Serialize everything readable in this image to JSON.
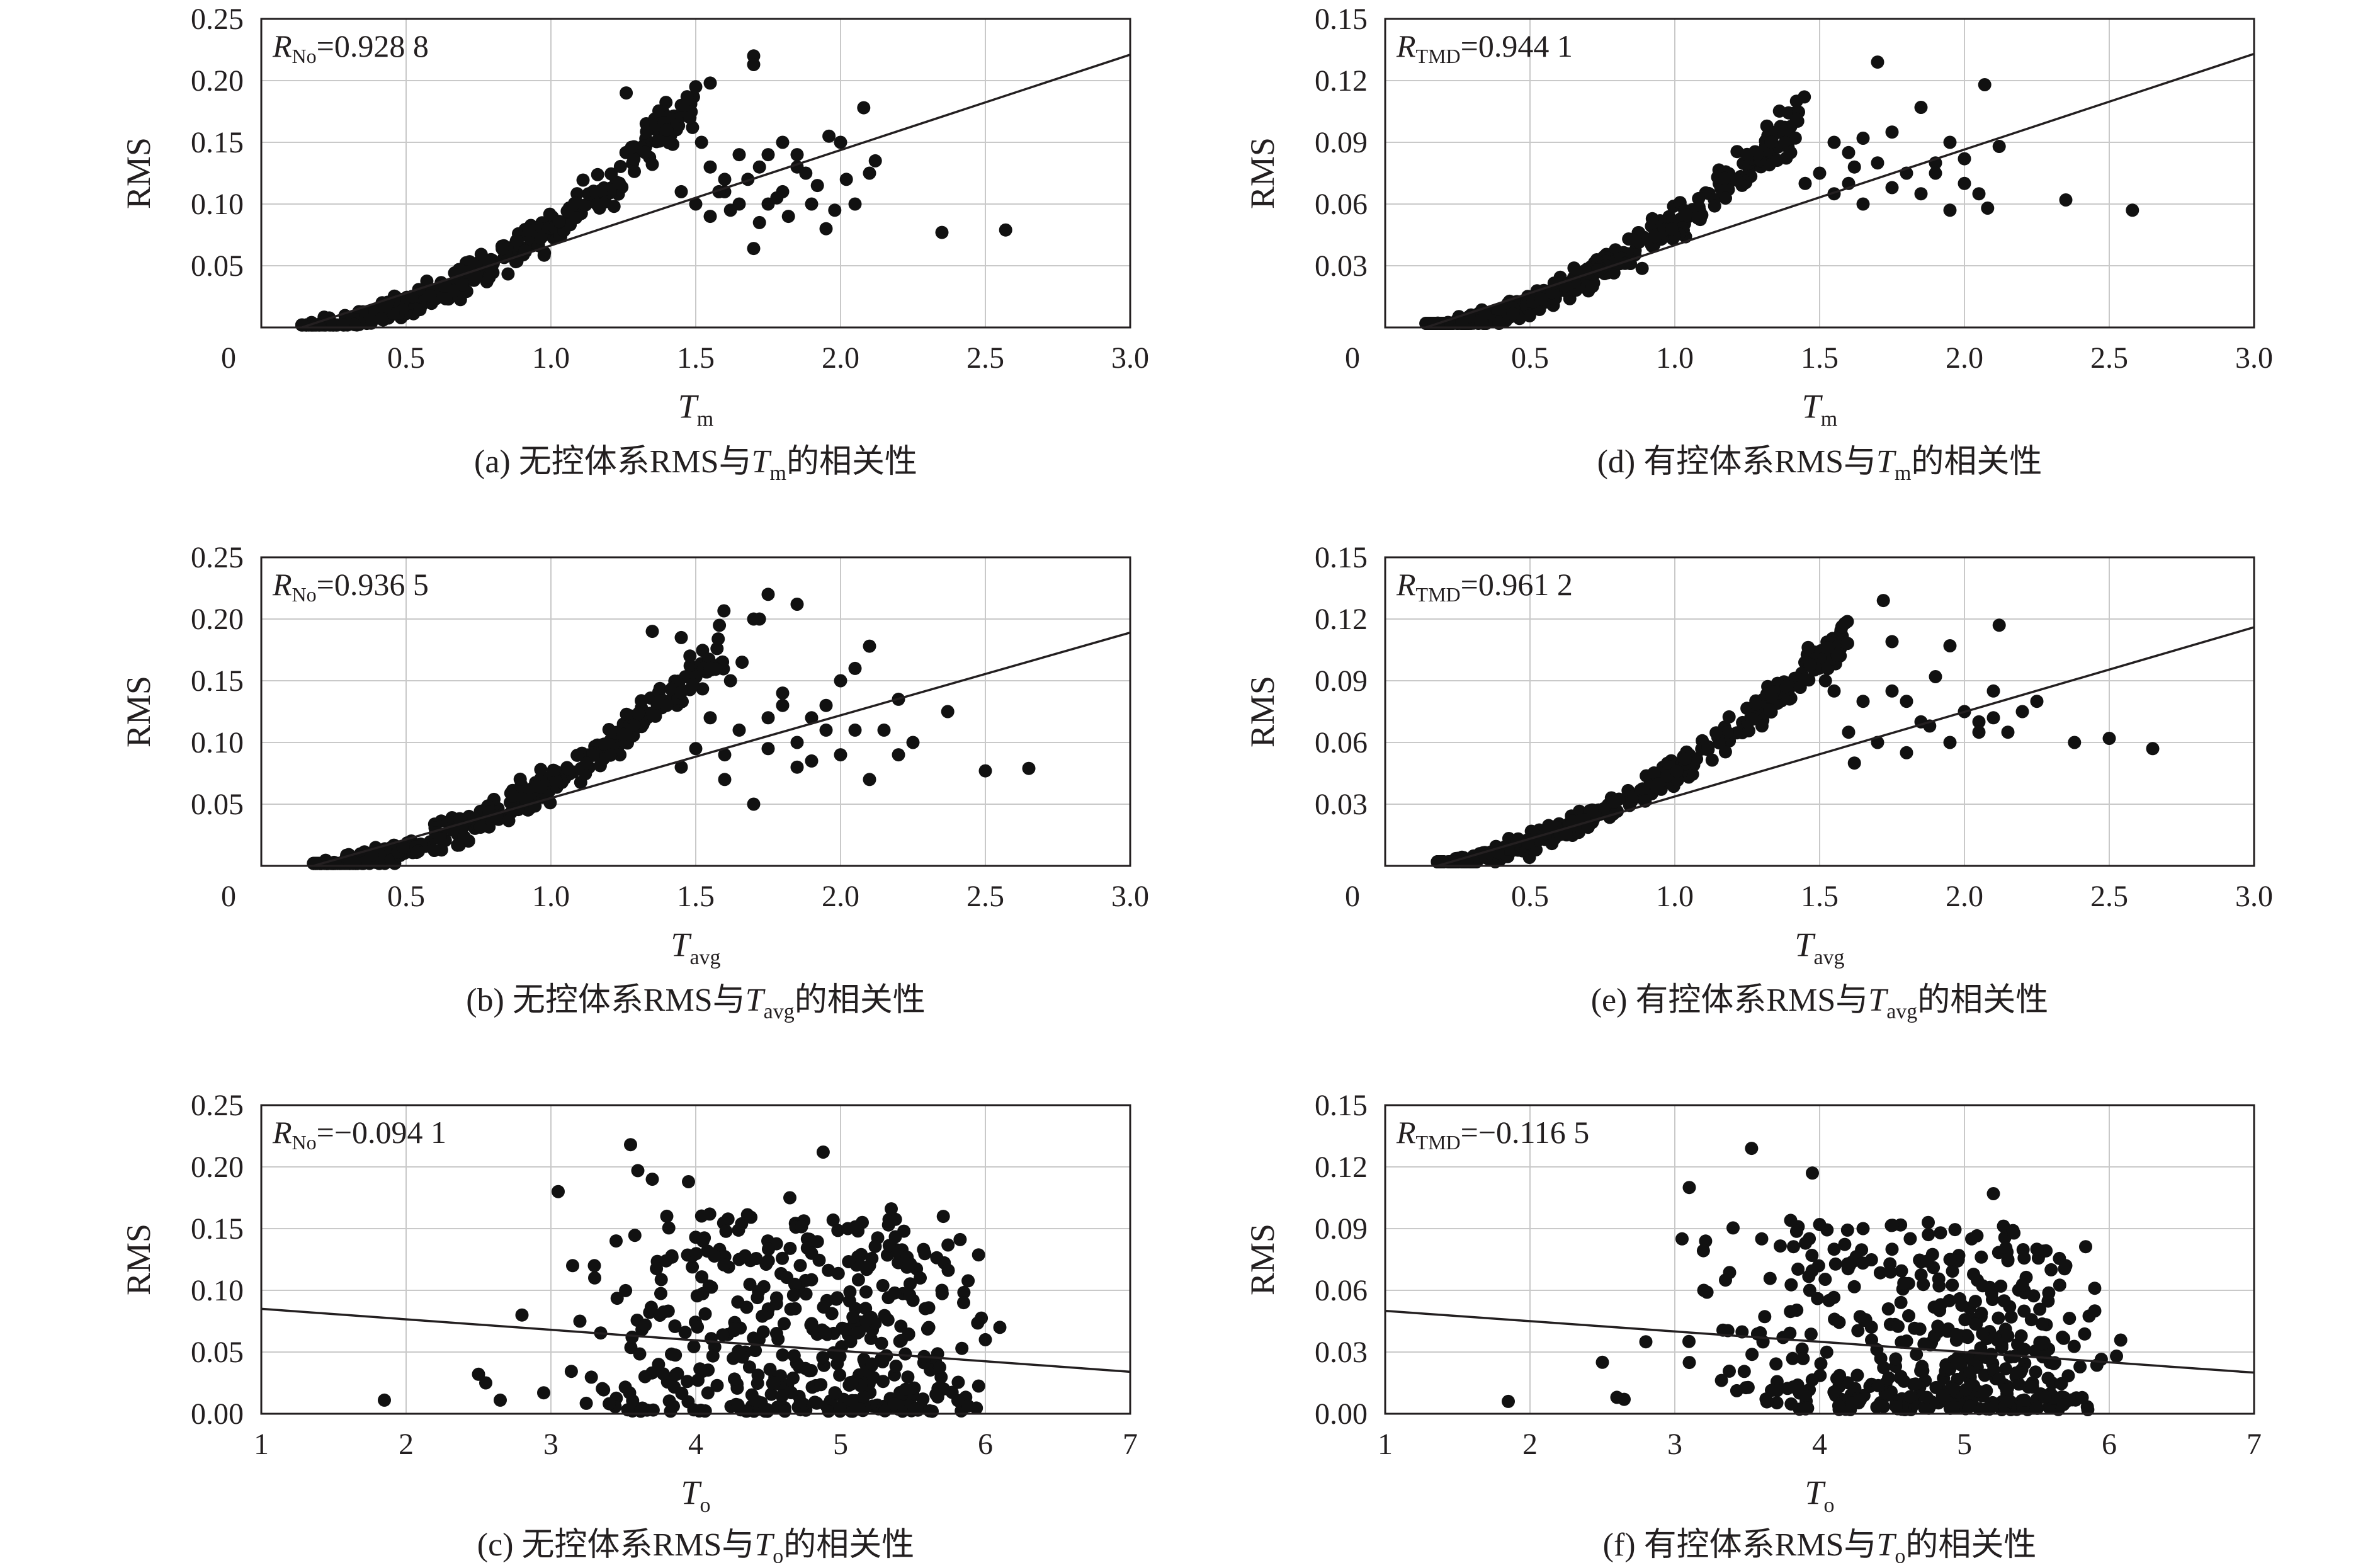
{
  "figure": {
    "colors": {
      "ink": "#231f20",
      "points": "#111111",
      "grid": "#c9c9c9",
      "background": "#ffffff"
    }
  },
  "chart_data": [
    {
      "id": "a",
      "type": "scatter",
      "caption": {
        "prefix": "(a) 无控体系RMS与",
        "var": "T",
        "var_sub": "m",
        "suffix": "的相关性"
      },
      "xlabel": {
        "main": "T",
        "sub": "m"
      },
      "ylabel": "RMS",
      "xlim": [
        0,
        3.0
      ],
      "ylim": [
        0,
        0.25
      ],
      "xticks": [
        0.5,
        1.0,
        1.5,
        2.0,
        2.5,
        3.0
      ],
      "xtick_labels": [
        "0.5",
        "1.0",
        "1.5",
        "2.0",
        "2.5",
        "3.0"
      ],
      "yticks": [
        0.05,
        0.1,
        0.15,
        0.2,
        0.25
      ],
      "ytick_labels": [
        "0.05",
        "0.10",
        "0.15",
        "0.20",
        "0.25"
      ],
      "origin_label": "0",
      "corr": {
        "sym": "R",
        "sub": "No",
        "value": "=0.928 8"
      },
      "fit_line": {
        "x": [
          0.14,
          3.0
        ],
        "y": [
          0.0,
          0.221
        ]
      },
      "cluster": {
        "x_min": 0.14,
        "x_max": 1.5,
        "slope": 0.077,
        "intercept": -0.006,
        "spread": 0.011,
        "count": 380,
        "seed": 11
      },
      "points": [
        [
          1.4,
          0.16
        ],
        [
          1.45,
          0.18
        ],
        [
          1.5,
          0.195
        ],
        [
          1.55,
          0.198
        ],
        [
          1.48,
          0.17
        ],
        [
          1.52,
          0.15
        ],
        [
          1.7,
          0.22
        ],
        [
          1.7,
          0.213
        ],
        [
          1.26,
          0.19
        ],
        [
          1.6,
          0.12
        ],
        [
          1.6,
          0.11
        ],
        [
          1.65,
          0.1
        ],
        [
          1.7,
          0.064
        ],
        [
          1.72,
          0.13
        ],
        [
          1.75,
          0.14
        ],
        [
          1.8,
          0.11
        ],
        [
          1.8,
          0.15
        ],
        [
          1.85,
          0.13
        ],
        [
          1.9,
          0.1
        ],
        [
          1.95,
          0.08
        ],
        [
          1.96,
          0.155
        ],
        [
          2.0,
          0.15
        ],
        [
          2.05,
          0.1
        ],
        [
          2.08,
          0.178
        ],
        [
          2.1,
          0.125
        ],
        [
          2.12,
          0.135
        ],
        [
          2.35,
          0.077
        ],
        [
          2.57,
          0.079
        ],
        [
          1.55,
          0.09
        ],
        [
          1.58,
          0.11
        ],
        [
          1.62,
          0.095
        ],
        [
          1.68,
          0.12
        ],
        [
          1.72,
          0.085
        ],
        [
          1.78,
          0.105
        ],
        [
          1.82,
          0.09
        ],
        [
          1.88,
          0.125
        ],
        [
          1.92,
          0.115
        ],
        [
          1.98,
          0.095
        ],
        [
          2.02,
          0.12
        ],
        [
          1.65,
          0.14
        ],
        [
          1.75,
          0.1
        ],
        [
          1.85,
          0.14
        ],
        [
          1.45,
          0.11
        ],
        [
          1.5,
          0.1
        ],
        [
          1.55,
          0.13
        ]
      ]
    },
    {
      "id": "b",
      "type": "scatter",
      "caption": {
        "prefix": "(b) 无控体系RMS与",
        "var": "T",
        "var_sub": "avg",
        "suffix": "的相关性"
      },
      "xlabel": {
        "main": "T",
        "sub": "avg"
      },
      "ylabel": "RMS",
      "xlim": [
        0,
        3.0
      ],
      "ylim": [
        0,
        0.25
      ],
      "xticks": [
        0.5,
        1.0,
        1.5,
        2.0,
        2.5,
        3.0
      ],
      "xtick_labels": [
        "0.5",
        "1.0",
        "1.5",
        "2.0",
        "2.5",
        "3.0"
      ],
      "yticks": [
        0.05,
        0.1,
        0.15,
        0.2,
        0.25
      ],
      "ytick_labels": [
        "0.05",
        "0.10",
        "0.15",
        "0.20",
        "0.25"
      ],
      "origin_label": "0",
      "corr": {
        "sym": "R",
        "sub": "No",
        "value": "=0.936 5"
      },
      "fit_line": {
        "x": [
          0.18,
          3.0
        ],
        "y": [
          0.0,
          0.189
        ]
      },
      "cluster": {
        "x_min": 0.18,
        "x_max": 1.6,
        "slope": 0.066,
        "intercept": -0.008,
        "spread": 0.01,
        "count": 380,
        "seed": 23
      },
      "points": [
        [
          1.35,
          0.19
        ],
        [
          1.45,
          0.185
        ],
        [
          1.48,
          0.17
        ],
        [
          1.55,
          0.16
        ],
        [
          1.62,
          0.15
        ],
        [
          1.66,
          0.165
        ],
        [
          1.7,
          0.2
        ],
        [
          1.75,
          0.22
        ],
        [
          1.85,
          0.212
        ],
        [
          1.72,
          0.2
        ],
        [
          1.8,
          0.13
        ],
        [
          1.9,
          0.12
        ],
        [
          1.95,
          0.11
        ],
        [
          2.0,
          0.15
        ],
        [
          2.05,
          0.16
        ],
        [
          2.1,
          0.178
        ],
        [
          2.2,
          0.135
        ],
        [
          2.25,
          0.1
        ],
        [
          2.37,
          0.125
        ],
        [
          2.5,
          0.077
        ],
        [
          2.65,
          0.079
        ],
        [
          1.7,
          0.05
        ],
        [
          1.6,
          0.09
        ],
        [
          1.65,
          0.11
        ],
        [
          1.75,
          0.095
        ],
        [
          1.85,
          0.1
        ],
        [
          1.9,
          0.085
        ],
        [
          1.95,
          0.13
        ],
        [
          2.0,
          0.09
        ],
        [
          2.1,
          0.07
        ],
        [
          2.15,
          0.11
        ],
        [
          1.55,
          0.12
        ],
        [
          1.6,
          0.07
        ],
        [
          1.8,
          0.14
        ],
        [
          1.85,
          0.08
        ],
        [
          2.05,
          0.11
        ],
        [
          1.5,
          0.095
        ],
        [
          1.4,
          0.13
        ],
        [
          1.45,
          0.08
        ],
        [
          1.75,
          0.12
        ],
        [
          2.2,
          0.09
        ]
      ]
    },
    {
      "id": "c",
      "type": "scatter",
      "caption": {
        "prefix": "(c) 无控体系RMS与",
        "var": "T",
        "var_sub": "o",
        "suffix": "的相关性"
      },
      "xlabel": {
        "main": "T",
        "sub": "o"
      },
      "ylabel": "RMS",
      "xlim": [
        1,
        7
      ],
      "ylim": [
        0,
        0.25
      ],
      "xticks": [
        1,
        2,
        3,
        4,
        5,
        6,
        7
      ],
      "xtick_labels": [
        "1",
        "2",
        "3",
        "4",
        "5",
        "6",
        "7"
      ],
      "yticks": [
        0,
        0.05,
        0.1,
        0.15,
        0.2,
        0.25
      ],
      "ytick_labels": [
        "0.00",
        "0.05",
        "0.10",
        "0.15",
        "0.20",
        "0.25"
      ],
      "origin_label": "",
      "corr": {
        "sym": "R",
        "sub": "No",
        "value": "=−0.094 1"
      },
      "fit_line": {
        "x": [
          1,
          7
        ],
        "y": [
          0.085,
          0.034
        ]
      },
      "cluster": {
        "x_min": 3.0,
        "x_max": 6.1,
        "density": "triangle",
        "mode": 5.2,
        "y_max": 0.16,
        "y_skew": 1.9,
        "count": 430,
        "seed": 37
      },
      "points": [
        [
          1.85,
          0.011
        ],
        [
          2.5,
          0.032
        ],
        [
          2.55,
          0.025
        ],
        [
          2.65,
          0.011
        ],
        [
          2.8,
          0.08
        ],
        [
          2.95,
          0.017
        ],
        [
          3.05,
          0.18
        ],
        [
          3.15,
          0.12
        ],
        [
          3.2,
          0.075
        ],
        [
          3.3,
          0.12
        ],
        [
          3.45,
          0.14
        ],
        [
          3.55,
          0.218
        ],
        [
          3.6,
          0.197
        ],
        [
          3.7,
          0.19
        ],
        [
          3.8,
          0.16
        ],
        [
          3.95,
          0.188
        ],
        [
          4.05,
          0.14
        ],
        [
          4.3,
          0.125
        ],
        [
          4.65,
          0.175
        ],
        [
          4.8,
          0.13
        ],
        [
          4.88,
          0.212
        ],
        [
          5.05,
          0.15
        ],
        [
          5.15,
          0.155
        ],
        [
          5.2,
          0.12
        ],
        [
          5.35,
          0.166
        ],
        [
          5.55,
          0.11
        ],
        [
          5.7,
          0.1
        ],
        [
          5.85,
          0.09
        ],
        [
          6.0,
          0.06
        ],
        [
          6.1,
          0.07
        ]
      ]
    },
    {
      "id": "d",
      "type": "scatter",
      "caption": {
        "prefix": "(d) 有控体系RMS与",
        "var": "T",
        "var_sub": "m",
        "suffix": "的相关性"
      },
      "xlabel": {
        "main": "T",
        "sub": "m"
      },
      "ylabel": "RMS",
      "xlim": [
        0,
        3.0
      ],
      "ylim": [
        0,
        0.15
      ],
      "xticks": [
        0.5,
        1.0,
        1.5,
        2.0,
        2.5,
        3.0
      ],
      "xtick_labels": [
        "0.5",
        "1.0",
        "1.5",
        "2.0",
        "2.5",
        "3.0"
      ],
      "yticks": [
        0.03,
        0.06,
        0.09,
        0.12,
        0.15
      ],
      "ytick_labels": [
        "0.03",
        "0.06",
        "0.09",
        "0.12",
        "0.15"
      ],
      "origin_label": "0",
      "corr": {
        "sym": "R",
        "sub": "TMD",
        "value": "=0.944 1"
      },
      "fit_line": {
        "x": [
          0.14,
          3.0
        ],
        "y": [
          0.0,
          0.133
        ]
      },
      "cluster": {
        "x_min": 0.14,
        "x_max": 1.45,
        "slope": 0.045,
        "intercept": -0.004,
        "spread": 0.006,
        "count": 380,
        "seed": 53
      },
      "points": [
        [
          1.42,
          0.11
        ],
        [
          1.7,
          0.129
        ],
        [
          1.85,
          0.107
        ],
        [
          2.07,
          0.118
        ],
        [
          2.12,
          0.088
        ],
        [
          1.55,
          0.09
        ],
        [
          1.6,
          0.085
        ],
        [
          1.65,
          0.092
        ],
        [
          1.75,
          0.095
        ],
        [
          1.8,
          0.075
        ],
        [
          1.9,
          0.08
        ],
        [
          1.95,
          0.09
        ],
        [
          2.0,
          0.07
        ],
        [
          2.05,
          0.065
        ],
        [
          1.95,
          0.057
        ],
        [
          2.08,
          0.058
        ],
        [
          2.35,
          0.062
        ],
        [
          2.58,
          0.057
        ],
        [
          1.5,
          0.075
        ],
        [
          1.55,
          0.065
        ],
        [
          1.6,
          0.07
        ],
        [
          1.65,
          0.06
        ],
        [
          1.7,
          0.08
        ],
        [
          1.75,
          0.068
        ],
        [
          1.85,
          0.065
        ],
        [
          1.9,
          0.075
        ],
        [
          2.0,
          0.082
        ],
        [
          1.4,
          0.085
        ],
        [
          1.45,
          0.07
        ],
        [
          1.62,
          0.078
        ]
      ]
    },
    {
      "id": "e",
      "type": "scatter",
      "caption": {
        "prefix": "(e) 有控体系RMS与",
        "var": "T",
        "var_sub": "avg",
        "suffix": "的相关性"
      },
      "xlabel": {
        "main": "T",
        "sub": "avg"
      },
      "ylabel": "RMS",
      "xlim": [
        0,
        3.0
      ],
      "ylim": [
        0,
        0.15
      ],
      "xticks": [
        0.5,
        1.0,
        1.5,
        2.0,
        2.5,
        3.0
      ],
      "xtick_labels": [
        "0.5",
        "1.0",
        "1.5",
        "2.0",
        "2.5",
        "3.0"
      ],
      "yticks": [
        0.03,
        0.06,
        0.09,
        0.12,
        0.15
      ],
      "ytick_labels": [
        "0.03",
        "0.06",
        "0.09",
        "0.12",
        "0.15"
      ],
      "origin_label": "0",
      "corr": {
        "sym": "R",
        "sub": "TMD",
        "value": "=0.961 2"
      },
      "fit_line": {
        "x": [
          0.18,
          3.0
        ],
        "y": [
          0.0,
          0.116
        ]
      },
      "cluster": {
        "x_min": 0.18,
        "x_max": 1.6,
        "slope": 0.04,
        "intercept": -0.004,
        "spread": 0.005,
        "count": 380,
        "seed": 71
      },
      "points": [
        [
          1.72,
          0.129
        ],
        [
          1.75,
          0.109
        ],
        [
          1.95,
          0.107
        ],
        [
          2.12,
          0.117
        ],
        [
          1.52,
          0.09
        ],
        [
          1.55,
          0.085
        ],
        [
          1.65,
          0.08
        ],
        [
          1.75,
          0.085
        ],
        [
          1.8,
          0.08
        ],
        [
          1.9,
          0.092
        ],
        [
          2.0,
          0.075
        ],
        [
          2.05,
          0.07
        ],
        [
          2.1,
          0.085
        ],
        [
          2.15,
          0.065
        ],
        [
          2.2,
          0.075
        ],
        [
          2.25,
          0.08
        ],
        [
          2.38,
          0.06
        ],
        [
          2.5,
          0.062
        ],
        [
          2.65,
          0.057
        ],
        [
          1.6,
          0.065
        ],
        [
          1.7,
          0.06
        ],
        [
          1.85,
          0.07
        ],
        [
          1.95,
          0.06
        ],
        [
          2.05,
          0.065
        ],
        [
          1.8,
          0.055
        ],
        [
          1.62,
          0.05
        ],
        [
          2.1,
          0.072
        ],
        [
          1.88,
          0.068
        ]
      ]
    },
    {
      "id": "f",
      "type": "scatter",
      "caption": {
        "prefix": "(f) 有控体系RMS与",
        "var": "T",
        "var_sub": "o",
        "suffix": "的相关性"
      },
      "xlabel": {
        "main": "T",
        "sub": "o"
      },
      "ylabel": "RMS",
      "xlim": [
        1,
        7
      ],
      "ylim": [
        0,
        0.15
      ],
      "xticks": [
        1,
        2,
        3,
        4,
        5,
        6,
        7
      ],
      "xtick_labels": [
        "1",
        "2",
        "3",
        "4",
        "5",
        "6",
        "7"
      ],
      "yticks": [
        0,
        0.03,
        0.06,
        0.09,
        0.12,
        0.15
      ],
      "ytick_labels": [
        "0.00",
        "0.03",
        "0.06",
        "0.09",
        "0.12",
        "0.15"
      ],
      "origin_label": "",
      "corr": {
        "sym": "R",
        "sub": "TMD",
        "value": "=−0.116 5"
      },
      "fit_line": {
        "x": [
          1,
          7
        ],
        "y": [
          0.05,
          0.02
        ]
      },
      "cluster": {
        "x_min": 3.0,
        "x_max": 6.1,
        "density": "triangle",
        "mode": 5.2,
        "y_max": 0.09,
        "y_skew": 1.9,
        "count": 430,
        "seed": 89
      },
      "points": [
        [
          1.85,
          0.006
        ],
        [
          2.5,
          0.025
        ],
        [
          2.6,
          0.008
        ],
        [
          2.65,
          0.007
        ],
        [
          2.8,
          0.035
        ],
        [
          3.05,
          0.085
        ],
        [
          3.1,
          0.11
        ],
        [
          3.2,
          0.06
        ],
        [
          3.35,
          0.065
        ],
        [
          3.53,
          0.129
        ],
        [
          3.6,
          0.085
        ],
        [
          3.8,
          0.094
        ],
        [
          3.95,
          0.117
        ],
        [
          4.0,
          0.092
        ],
        [
          4.1,
          0.08
        ],
        [
          4.3,
          0.09
        ],
        [
          4.5,
          0.08
        ],
        [
          4.75,
          0.093
        ],
        [
          4.9,
          0.075
        ],
        [
          5.05,
          0.085
        ],
        [
          5.2,
          0.107
        ],
        [
          5.3,
          0.075
        ],
        [
          5.5,
          0.08
        ],
        [
          5.7,
          0.072
        ],
        [
          5.9,
          0.05
        ],
        [
          6.05,
          0.028
        ]
      ]
    }
  ]
}
